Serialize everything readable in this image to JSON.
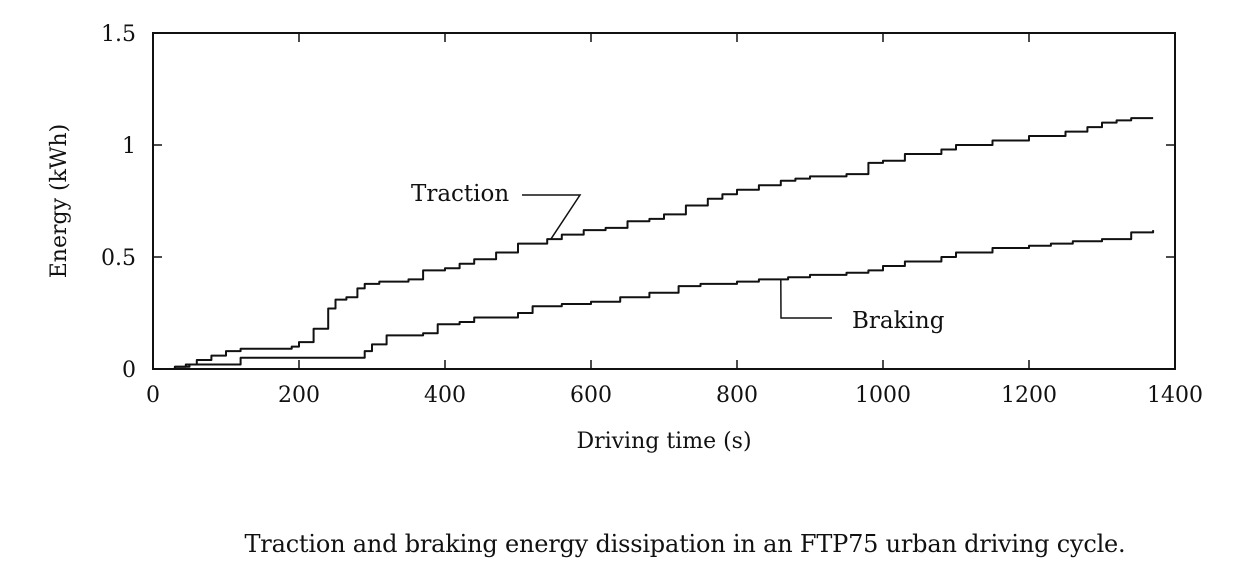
{
  "caption": "Traction and braking energy dissipation in an FTP75 urban driving cycle.",
  "chart_data": {
    "type": "line",
    "title": "",
    "xlabel": "Driving time (s)",
    "ylabel": "Energy (kWh)",
    "xlim": [
      0,
      1400
    ],
    "ylim": [
      0,
      1.5
    ],
    "xticks": [
      0,
      200,
      400,
      600,
      800,
      1000,
      1200,
      1400
    ],
    "xtick_labels": [
      "0",
      "200",
      "400",
      "600",
      "800",
      "1000",
      "1200",
      "1400"
    ],
    "yticks": [
      0,
      0.5,
      1,
      1.5
    ],
    "ytick_labels": [
      "0",
      "0.5",
      "1",
      "1.5"
    ],
    "grid": false,
    "line_color": "#111111",
    "series": [
      {
        "name": "Traction",
        "x": [
          20,
          30,
          45,
          60,
          80,
          100,
          120,
          190,
          200,
          220,
          240,
          250,
          265,
          280,
          290,
          310,
          350,
          370,
          400,
          420,
          440,
          470,
          500,
          540,
          560,
          590,
          620,
          650,
          680,
          700,
          730,
          760,
          780,
          800,
          830,
          860,
          880,
          900,
          950,
          980,
          1000,
          1030,
          1080,
          1100,
          1150,
          1200,
          1250,
          1280,
          1300,
          1320,
          1340,
          1370
        ],
        "y": [
          0.0,
          0.01,
          0.02,
          0.04,
          0.06,
          0.08,
          0.09,
          0.1,
          0.12,
          0.18,
          0.27,
          0.31,
          0.32,
          0.36,
          0.38,
          0.39,
          0.4,
          0.44,
          0.45,
          0.47,
          0.49,
          0.52,
          0.56,
          0.58,
          0.6,
          0.62,
          0.63,
          0.66,
          0.67,
          0.69,
          0.73,
          0.76,
          0.78,
          0.8,
          0.82,
          0.84,
          0.85,
          0.86,
          0.87,
          0.92,
          0.93,
          0.96,
          0.98,
          1.0,
          1.02,
          1.04,
          1.06,
          1.08,
          1.1,
          1.11,
          1.12,
          1.12
        ]
      },
      {
        "name": "Braking",
        "x": [
          20,
          30,
          50,
          110,
          120,
          280,
          290,
          300,
          320,
          370,
          390,
          420,
          440,
          500,
          520,
          560,
          600,
          640,
          680,
          720,
          750,
          800,
          830,
          870,
          900,
          950,
          980,
          1000,
          1030,
          1080,
          1100,
          1150,
          1200,
          1230,
          1260,
          1300,
          1340,
          1370
        ],
        "y": [
          0.0,
          0.01,
          0.02,
          0.02,
          0.05,
          0.05,
          0.08,
          0.11,
          0.15,
          0.16,
          0.2,
          0.21,
          0.23,
          0.25,
          0.28,
          0.29,
          0.3,
          0.32,
          0.34,
          0.37,
          0.38,
          0.39,
          0.4,
          0.41,
          0.42,
          0.43,
          0.44,
          0.46,
          0.48,
          0.5,
          0.52,
          0.54,
          0.55,
          0.56,
          0.57,
          0.58,
          0.61,
          0.62
        ]
      }
    ],
    "annotations": [
      {
        "text": "Traction",
        "series": 0,
        "at_x": 545
      },
      {
        "text": "Braking",
        "series": 1,
        "at_x": 860
      }
    ]
  }
}
